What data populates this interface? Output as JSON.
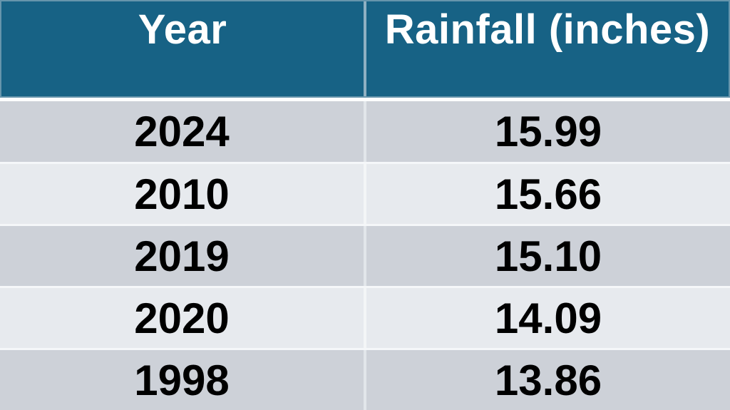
{
  "table": {
    "headers": [
      "Year",
      "Rainfall (inches)"
    ],
    "rows": [
      {
        "year": "2024",
        "rainfall": "15.99"
      },
      {
        "year": "2010",
        "rainfall": "15.66"
      },
      {
        "year": "2019",
        "rainfall": "15.10"
      },
      {
        "year": "2020",
        "rainfall": "14.09"
      },
      {
        "year": "1998",
        "rainfall": "13.86"
      }
    ]
  },
  "colors": {
    "header_bg": "#176285",
    "header_text": "#FFFFFF",
    "header_border": "#6795AC",
    "header_divider": "#8FB0C2",
    "row_dark": "#CDD1D8",
    "row_light": "#E7EAEE",
    "separator": "#F5F7F9",
    "body_text": "#000000"
  },
  "chart_data": {
    "type": "table",
    "columns": [
      "Year",
      "Rainfall (inches)"
    ],
    "rows": [
      [
        "2024",
        15.99
      ],
      [
        "2010",
        15.66
      ],
      [
        "2019",
        15.1
      ],
      [
        "2020",
        14.09
      ],
      [
        "1998",
        13.86
      ]
    ]
  }
}
